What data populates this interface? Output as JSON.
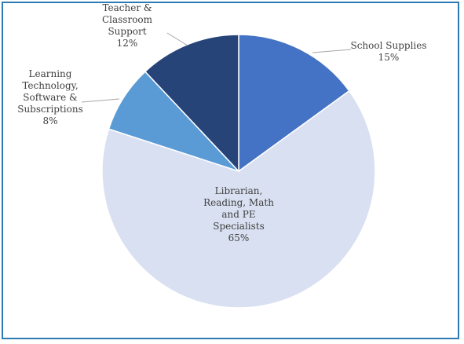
{
  "chart_data": {
    "type": "pie",
    "title": "",
    "slices": [
      {
        "label": "School Supplies",
        "label_lines": [
          "School Supplies"
        ],
        "pct_text": "15%",
        "value": 15,
        "color": "#4472c4"
      },
      {
        "label": "Librarian, Reading, Math and PE Specialists",
        "label_lines": [
          "Librarian,",
          "Reading, Math",
          "and PE",
          "Specialists"
        ],
        "pct_text": "65%",
        "value": 65,
        "color": "#d9e0f1"
      },
      {
        "label": "Learning Technology, Software & Subscriptions",
        "label_lines": [
          "Learning",
          "Technology,",
          "Software &",
          "Subscriptions"
        ],
        "pct_text": "8%",
        "value": 8,
        "color": "#5b9bd5"
      },
      {
        "label": "Teacher & Classroom Support",
        "label_lines": [
          "Teacher &",
          "Classroom",
          "Support"
        ],
        "pct_text": "12%",
        "value": 12,
        "color": "#264478"
      }
    ],
    "legend": "none",
    "start_angle": "12 o'clock",
    "direction": "clockwise"
  },
  "colors": {
    "frame_border": "#2e7bb4",
    "slice_stroke": "#ffffff",
    "label_text": "#404040",
    "leader_line": "#a6a6a6"
  }
}
